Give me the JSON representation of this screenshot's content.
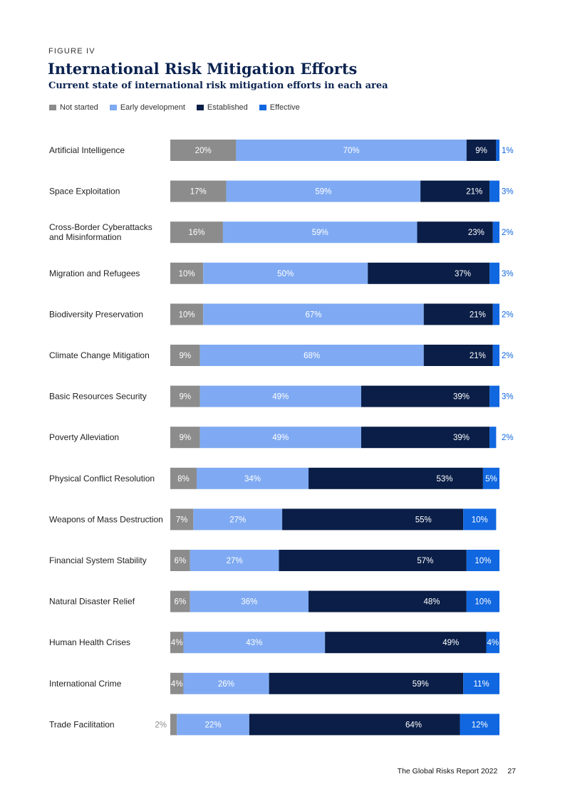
{
  "figure_label": "FIGURE IV",
  "title": "International Risk Mitigation Efforts",
  "subtitle": "Current state of international risk mitigation efforts in each area",
  "legend": [
    {
      "label": "Not started",
      "color": "#8c8c8c"
    },
    {
      "label": "Early development",
      "color": "#7faaf3"
    },
    {
      "label": "Established",
      "color": "#0a1e47"
    },
    {
      "label": "Effective",
      "color": "#1067e0"
    }
  ],
  "chart_data": {
    "type": "bar",
    "orientation": "horizontal",
    "stacked": true,
    "title": "International Risk Mitigation Efforts",
    "subtitle": "Current state of international risk mitigation efforts in each area",
    "unit": "%",
    "xlim": [
      0,
      100
    ],
    "categories": [
      [
        "Artificial Intelligence"
      ],
      [
        "Space Exploitation"
      ],
      [
        "Cross-Border Cyberattacks",
        "and Misinformation"
      ],
      [
        "Migration and Refugees"
      ],
      [
        "Biodiversity Preservation"
      ],
      [
        "Climate Change Mitigation"
      ],
      [
        "Basic Resources Security"
      ],
      [
        "Poverty Alleviation"
      ],
      [
        "Physical Conflict Resolution"
      ],
      [
        "Weapons of Mass Destruction"
      ],
      [
        "Financial System Stability"
      ],
      [
        "Natural Disaster Relief"
      ],
      [
        "Human Health Crises"
      ],
      [
        "International Crime"
      ],
      [
        "Trade Facilitation"
      ]
    ],
    "series": [
      {
        "name": "Not started",
        "color": "#8c8c8c",
        "values": [
          20,
          17,
          16,
          10,
          10,
          9,
          9,
          9,
          8,
          7,
          6,
          6,
          4,
          4,
          2
        ]
      },
      {
        "name": "Early development",
        "color": "#7faaf3",
        "values": [
          70,
          59,
          59,
          50,
          67,
          68,
          49,
          49,
          34,
          27,
          27,
          36,
          43,
          26,
          22
        ]
      },
      {
        "name": "Established",
        "color": "#0a1e47",
        "values": [
          9,
          21,
          23,
          37,
          21,
          21,
          39,
          39,
          53,
          55,
          57,
          48,
          49,
          59,
          64
        ]
      },
      {
        "name": "Effective",
        "color": "#1067e0",
        "values": [
          1,
          3,
          2,
          3,
          2,
          2,
          3,
          2,
          5,
          10,
          10,
          10,
          4,
          11,
          12
        ]
      }
    ]
  },
  "footer": {
    "report": "The Global Risks Report 2022",
    "page": "27"
  }
}
